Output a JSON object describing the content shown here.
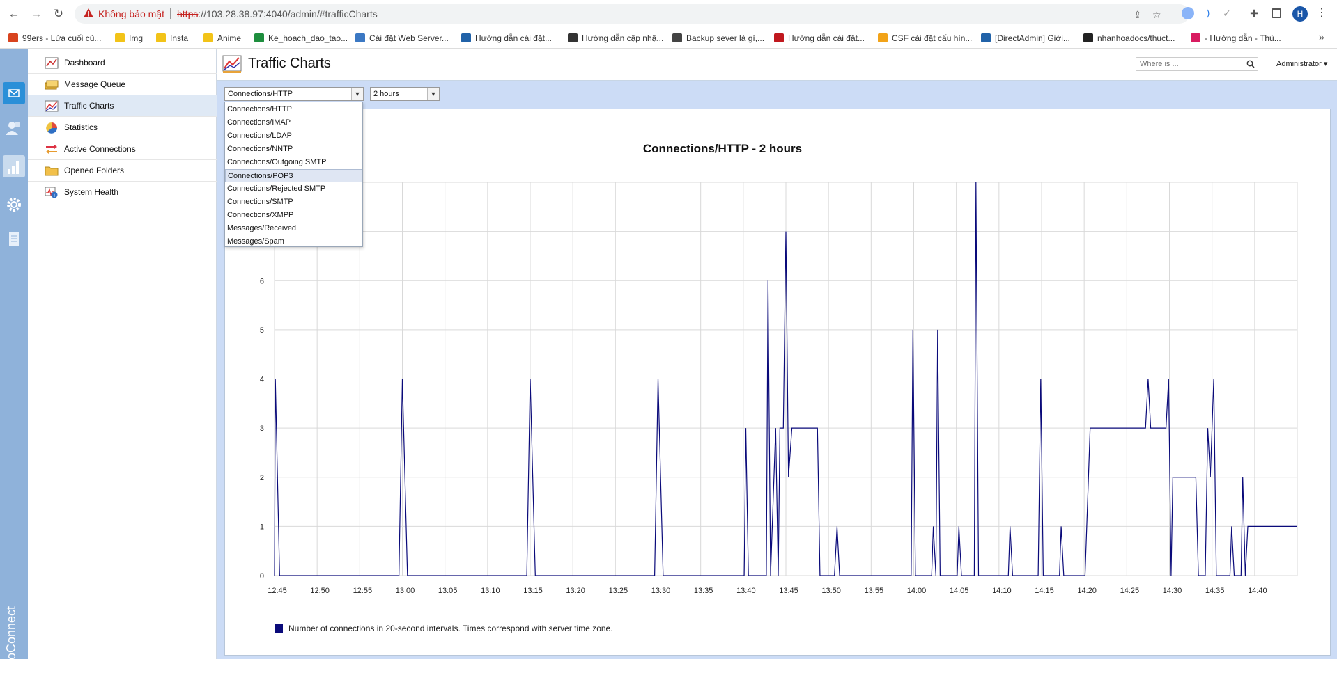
{
  "browser": {
    "insecure_label": "Không bảo mật",
    "url_scheme": "https",
    "url_rest": "://103.28.38.97:4040/admin/#trafficCharts",
    "avatar_letter": "H",
    "bookmarks": [
      {
        "label": "99ers - Lửa cuối cù...",
        "color": "#d8431e"
      },
      {
        "label": "Img",
        "color": "#f2c318"
      },
      {
        "label": "Insta",
        "color": "#f2c318"
      },
      {
        "label": "Anime",
        "color": "#f2c318"
      },
      {
        "label": "Ke_hoach_dao_tao...",
        "color": "#1e8e3e"
      },
      {
        "label": "Cài đặt Web Server...",
        "color": "#3b78c3"
      },
      {
        "label": "Hướng dẫn cài đặt...",
        "color": "#2162a8"
      },
      {
        "label": "Hướng dẫn cập nhậ...",
        "color": "#333333"
      },
      {
        "label": "Backup sever là gì,...",
        "color": "#444444"
      },
      {
        "label": "Hướng dẫn cài đặt...",
        "color": "#c0181e"
      },
      {
        "label": "CSF cài đặt cấu hìn...",
        "color": "#f2a318"
      },
      {
        "label": "[DirectAdmin] Giới...",
        "color": "#2162a8"
      },
      {
        "label": "nhanhoadocs/thuct...",
        "color": "#222222"
      },
      {
        "label": "- Hướng dẫn - Thủ...",
        "color": "#d81b60"
      }
    ]
  },
  "app": {
    "brand": "KerioConnect",
    "page_title": "Traffic Charts",
    "search_placeholder": "Where is ...",
    "user_menu": "Administrator ▾"
  },
  "sidebar": {
    "items": [
      {
        "label": "Dashboard",
        "icon": "dashboard-icon"
      },
      {
        "label": "Message Queue",
        "icon": "message-queue-icon"
      },
      {
        "label": "Traffic Charts",
        "icon": "traffic-chart-icon"
      },
      {
        "label": "Statistics",
        "icon": "statistics-icon"
      },
      {
        "label": "Active Connections",
        "icon": "active-connections-icon"
      },
      {
        "label": "Opened Folders",
        "icon": "folder-icon"
      },
      {
        "label": "System Health",
        "icon": "system-health-icon"
      }
    ],
    "selected_index": 2
  },
  "controls": {
    "metric_selected": "Connections/HTTP",
    "range_selected": "2 hours",
    "metric_options": [
      "Connections/HTTP",
      "Connections/IMAP",
      "Connections/LDAP",
      "Connections/NNTP",
      "Connections/Outgoing SMTP",
      "Connections/POP3",
      "Connections/Rejected SMTP",
      "Connections/SMTP",
      "Connections/XMPP",
      "Messages/Received",
      "Messages/Spam"
    ],
    "hover_index": 5
  },
  "chart_data": {
    "type": "line",
    "title": "Connections/HTTP - 2 hours",
    "legend": "Number of connections in 20-second intervals. Times correspond with server time zone.",
    "series_color": "#0a0a7a",
    "grid": true,
    "ylim": [
      0,
      8
    ],
    "y_ticks": [
      0,
      1,
      2,
      3,
      4,
      5,
      6,
      7
    ],
    "x_tick_labels": [
      "12:45",
      "12:50",
      "12:55",
      "13:00",
      "13:05",
      "13:10",
      "13:15",
      "13:20",
      "13:25",
      "13:30",
      "13:35",
      "13:40",
      "13:45",
      "13:50",
      "13:55",
      "14:00",
      "14:05",
      "14:10",
      "14:15",
      "14:20",
      "14:25",
      "14:30",
      "14:35",
      "14:40"
    ],
    "x_minutes_range": [
      0,
      120
    ],
    "points": [
      [
        0,
        0
      ],
      [
        0.1,
        4
      ],
      [
        0.6,
        0
      ],
      [
        14.6,
        0
      ],
      [
        15,
        4
      ],
      [
        15.6,
        0
      ],
      [
        29.6,
        0
      ],
      [
        30,
        4
      ],
      [
        30.6,
        0
      ],
      [
        44.6,
        0
      ],
      [
        45,
        4
      ],
      [
        45.6,
        0
      ],
      [
        55.1,
        0
      ],
      [
        55.3,
        3
      ],
      [
        55.6,
        0
      ],
      [
        57.7,
        0
      ],
      [
        57.9,
        6
      ],
      [
        58.2,
        0
      ],
      [
        58.8,
        3
      ],
      [
        59.1,
        0
      ],
      [
        59.3,
        3
      ],
      [
        59.7,
        3
      ],
      [
        60,
        7
      ],
      [
        60.3,
        2
      ],
      [
        60.7,
        3
      ],
      [
        63.7,
        3
      ],
      [
        64,
        0
      ],
      [
        65.7,
        0
      ],
      [
        66,
        1
      ],
      [
        66.3,
        0
      ],
      [
        74.7,
        0
      ],
      [
        74.9,
        5
      ],
      [
        75.2,
        0
      ],
      [
        77.1,
        0
      ],
      [
        77.3,
        1
      ],
      [
        77.6,
        0
      ],
      [
        77.8,
        5
      ],
      [
        78.1,
        0
      ],
      [
        80.1,
        0
      ],
      [
        80.3,
        1
      ],
      [
        80.6,
        0
      ],
      [
        82.1,
        0
      ],
      [
        82.3,
        8
      ],
      [
        82.6,
        0
      ],
      [
        86.1,
        0
      ],
      [
        86.3,
        1
      ],
      [
        86.6,
        0
      ],
      [
        89.6,
        0
      ],
      [
        89.9,
        4
      ],
      [
        90.2,
        0
      ],
      [
        92.1,
        0
      ],
      [
        92.3,
        1
      ],
      [
        92.6,
        0
      ],
      [
        95.1,
        0
      ],
      [
        95.5,
        2
      ],
      [
        95.7,
        3
      ],
      [
        102.2,
        3
      ],
      [
        102.5,
        4
      ],
      [
        102.8,
        3
      ],
      [
        104.6,
        3
      ],
      [
        104.9,
        4
      ],
      [
        105.2,
        0
      ],
      [
        105.4,
        2
      ],
      [
        108.1,
        2
      ],
      [
        108.4,
        0
      ],
      [
        109.2,
        0
      ],
      [
        109.5,
        3
      ],
      [
        109.8,
        2
      ],
      [
        110.2,
        4
      ],
      [
        110.5,
        0
      ],
      [
        112.1,
        0
      ],
      [
        112.3,
        1
      ],
      [
        112.6,
        0
      ],
      [
        113.4,
        0
      ],
      [
        113.6,
        2
      ],
      [
        113.9,
        0
      ],
      [
        114.2,
        1
      ],
      [
        120,
        1
      ]
    ]
  }
}
